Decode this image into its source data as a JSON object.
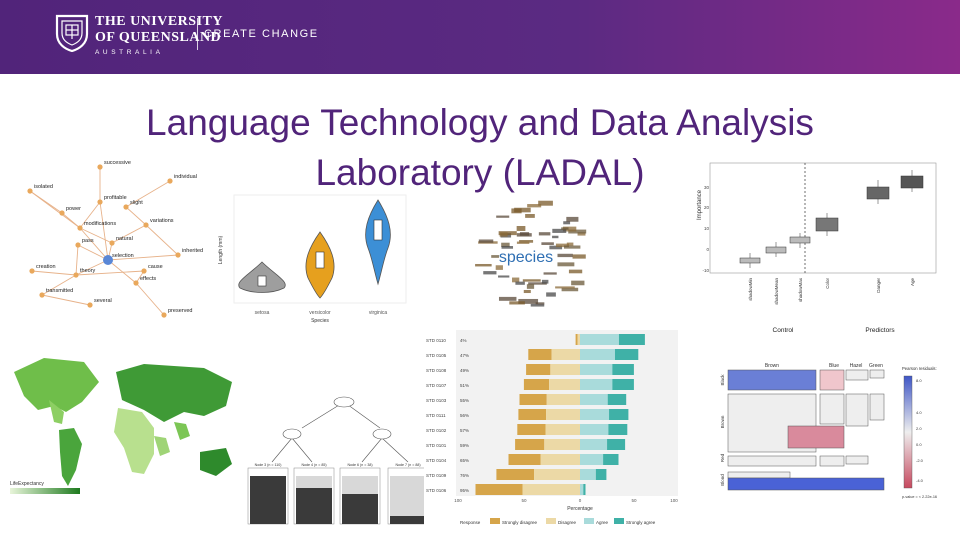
{
  "header": {
    "logo_line1": "THE UNIVERSITY",
    "logo_line2": "OF QUEENSLAND",
    "logo_sub": "AUSTRALIA",
    "tagline": "CREATE CHANGE",
    "brand_color": "#51247a",
    "crest_icon": "uq-crest-icon"
  },
  "title": {
    "line1": "Language Technology and Data Analysis",
    "line2": "Laboratory (LADAL)"
  },
  "network": {
    "nodes": [
      "successive",
      "individual",
      "isolated",
      "profitable",
      "slight",
      "power",
      "modifications",
      "variations",
      "natural",
      "pass",
      "inherited",
      "selection",
      "creation",
      "theory",
      "cause",
      "effects",
      "transmitted",
      "several",
      "preserved"
    ]
  },
  "violin": {
    "ylabel": "Length (mm)",
    "xlabel": "Species",
    "categories": [
      "setosa",
      "versicolor",
      "virginica"
    ],
    "colors": [
      "#9e9e9e",
      "#e6a01e",
      "#3c8fd6"
    ]
  },
  "wordcloud": {
    "main_word": "species"
  },
  "boxplot": {
    "ylabel": "Importance",
    "yticks": [
      "30",
      "20",
      "10",
      "0",
      "-10"
    ],
    "categories": [
      "shadowMin",
      "shadowMean",
      "shadowMax",
      "Color",
      "Danger",
      "Age"
    ],
    "group_labels": [
      "Control",
      "Predictors"
    ]
  },
  "likert": {
    "xlabel": "Percentage",
    "xticks": [
      "100",
      "50",
      "0",
      "50",
      "100"
    ],
    "legend_title": "Response",
    "legend": [
      "Strongly disagree",
      "Disagree",
      "Agree",
      "Strongly agree"
    ],
    "colors": [
      "#d6a54a",
      "#ecd9a6",
      "#a9dbdb",
      "#3fb1a7"
    ],
    "rows": [
      {
        "label": "STD 0110",
        "left": "4%",
        "right": "59%"
      },
      {
        "label": "STD 0105",
        "left": "47%",
        "right": "53%"
      },
      {
        "label": "STD 0108",
        "left": "49%",
        "right": "49%"
      },
      {
        "label": "STD 0107",
        "left": "51%",
        "right": "49%"
      },
      {
        "label": "STD 0103",
        "left": "55%",
        "right": "42%"
      },
      {
        "label": "STD 0111",
        "left": "56%",
        "right": "44%"
      },
      {
        "label": "STD 0102",
        "left": "57%",
        "right": "43%"
      },
      {
        "label": "STD 0101",
        "left": "59%",
        "right": "41%"
      },
      {
        "label": "STD 0104",
        "left": "65%",
        "right": "35%"
      },
      {
        "label": "STD 0109",
        "left": "76%",
        "right": "24%"
      },
      {
        "label": "STD 0106",
        "left": "95%",
        "right": "5%"
      }
    ]
  },
  "mosaic": {
    "top_labels": [
      "Brown",
      "Blue",
      "Hazel",
      "Green"
    ],
    "left_labels": [
      "Black",
      "Brown",
      "Red",
      "Blond"
    ],
    "legend_title": "Pearson residuals:",
    "legend_ticks": [
      "8.0",
      "4.0",
      "2.0",
      "0.0",
      "-2.0",
      "-4.0"
    ],
    "pvalue": "p-value = < 2.22e-16"
  },
  "map": {
    "legend_label": "LifeExpectancy"
  },
  "tree": {
    "leaf_labels": [
      "Node 3 (n = 110)",
      "Node 4 (n = 85)",
      "Node 6 (n = 38)",
      "Node 7 (n = 88)"
    ]
  }
}
